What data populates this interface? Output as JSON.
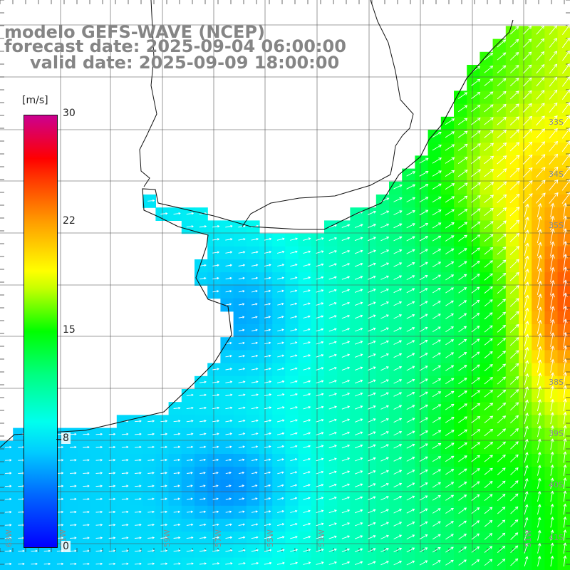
{
  "title": {
    "line1": "modelo GEFS-WAVE (NCEP)",
    "line2": "forecast date: 2025-09-04 06:00:00",
    "line3": "valid date: 2025-09-09 18:00:00"
  },
  "colorbar": {
    "unit": "[m/s]",
    "ticks": [
      "30",
      "22",
      "15",
      "8",
      "0"
    ],
    "min": 0,
    "max": 30,
    "colors": [
      "#0000ff",
      "#00ccff",
      "#00ffee",
      "#00ff00",
      "#ffff00",
      "#ff0000",
      "#cc0090"
    ]
  },
  "map": {
    "lat_labels": [
      "33S",
      "34S",
      "35S",
      "38S",
      "39S",
      "40S",
      "41S"
    ],
    "lon_labels": [
      "63W",
      "61W",
      "59W",
      "57W",
      "55W",
      "53W",
      "51W"
    ],
    "grid": true
  }
}
